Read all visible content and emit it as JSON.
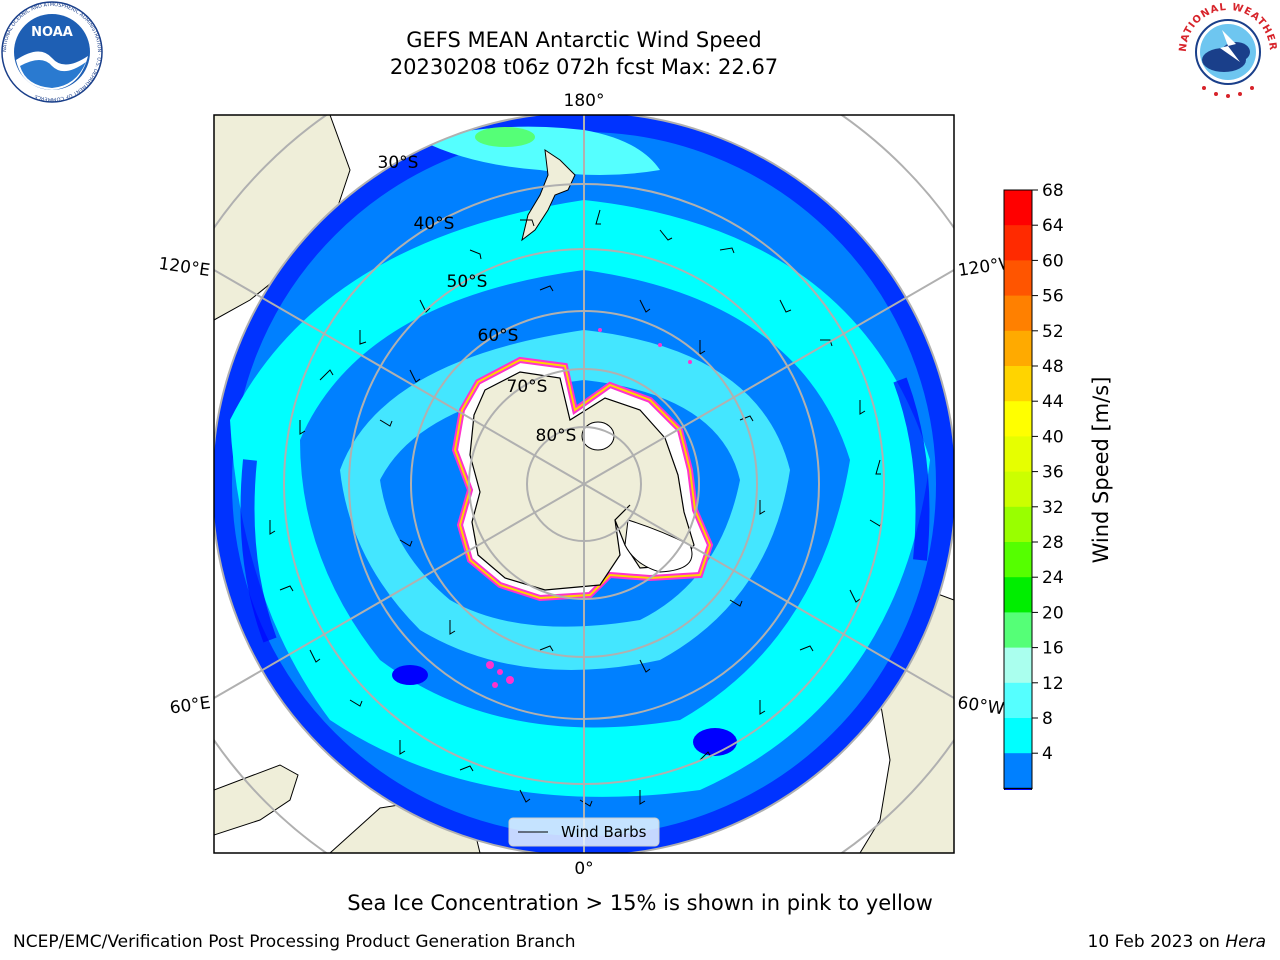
{
  "title": {
    "line1": "GEFS MEAN Antarctic Wind Speed",
    "line2": "20230208 t06z 072h fcst   Max: 22.67"
  },
  "map": {
    "projection": "south-polar-stereographic",
    "lon_labels": {
      "top": "180°",
      "bottom": "0°",
      "upper_left": "120°E",
      "upper_right": "120°W",
      "lower_left": "60°E",
      "lower_right": "60°W"
    },
    "lat_labels": [
      "30°S",
      "40°S",
      "50°S",
      "60°S",
      "70°S",
      "80°S"
    ],
    "legend_label": "Wind Barbs"
  },
  "colorbar": {
    "label": "Wind Speed [m/s]",
    "ticks": [
      "68",
      "64",
      "60",
      "56",
      "52",
      "48",
      "44",
      "40",
      "36",
      "32",
      "28",
      "24",
      "20",
      "16",
      "12",
      "8",
      "4"
    ],
    "colors": [
      "#ff0000",
      "#ff2a00",
      "#ff5500",
      "#ff8000",
      "#ffaa00",
      "#ffd400",
      "#ffff00",
      "#e6ff00",
      "#ccff00",
      "#99ff00",
      "#55ff00",
      "#00ee00",
      "#55ff77",
      "#aaffee",
      "#55ffff",
      "#00ffff",
      "#0080ff"
    ],
    "under_color": "#0000ff",
    "range": [
      4,
      68
    ]
  },
  "colors": {
    "land": "#efeed9",
    "ocean_light": "#55ffff",
    "ocean_mid": "#00ffff",
    "ocean_dark": "#0080ff",
    "ocean_deep": "#0000ff",
    "ice_edge": "#ff33cc",
    "grid": "#b0b0b0"
  },
  "caption": "Sea Ice Concentration > 15% is shown in pink to yellow",
  "footer": {
    "left": "NCEP/EMC/Verification Post Processing Product Generation Branch",
    "right_date": "10 Feb 2023 on ",
    "right_host": "Hera"
  },
  "logos": {
    "left": "NOAA",
    "left_ring": "NATIONAL OCEANIC AND ATMOSPHERIC ADMINISTRATION · U.S. DEPARTMENT OF COMMERCE",
    "right_ring": "NATIONAL WEATHER SERVICE"
  }
}
